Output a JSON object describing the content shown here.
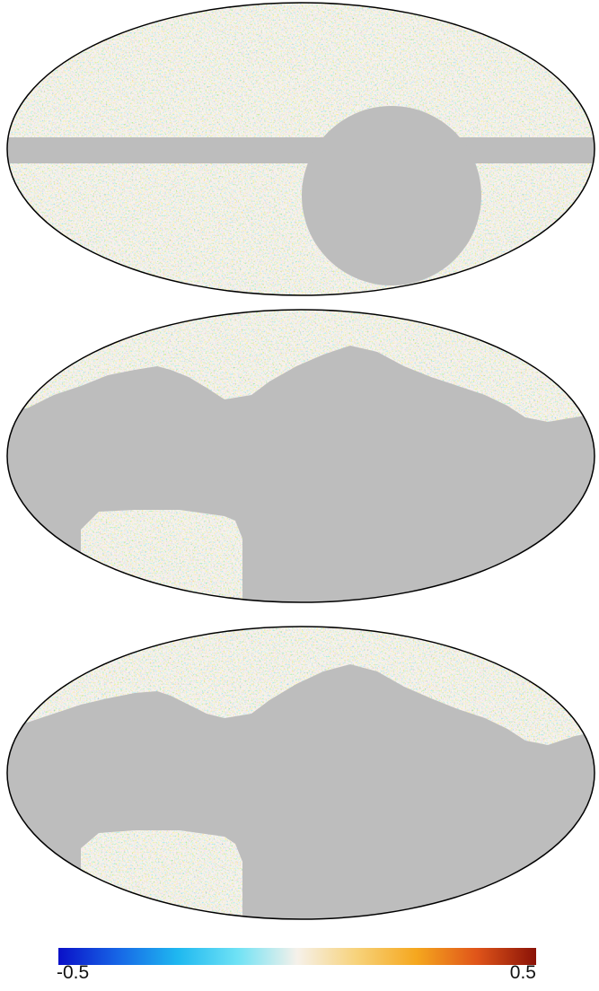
{
  "maps": [
    {
      "mask": "galactic-plane-and-disk"
    },
    {
      "mask": "north-cap-and-patch"
    },
    {
      "mask": "north-cap-and-patch"
    }
  ],
  "colorbar": {
    "min_label": "-0.5",
    "max_label": "0.5",
    "stops": [
      "#0a10c8",
      "#1766e6",
      "#1fb8f0",
      "#6fe2f5",
      "#f6f1ea",
      "#f7d27a",
      "#f5a71e",
      "#e0551a",
      "#8a1207"
    ],
    "masked_color": "#bdbdbd"
  }
}
